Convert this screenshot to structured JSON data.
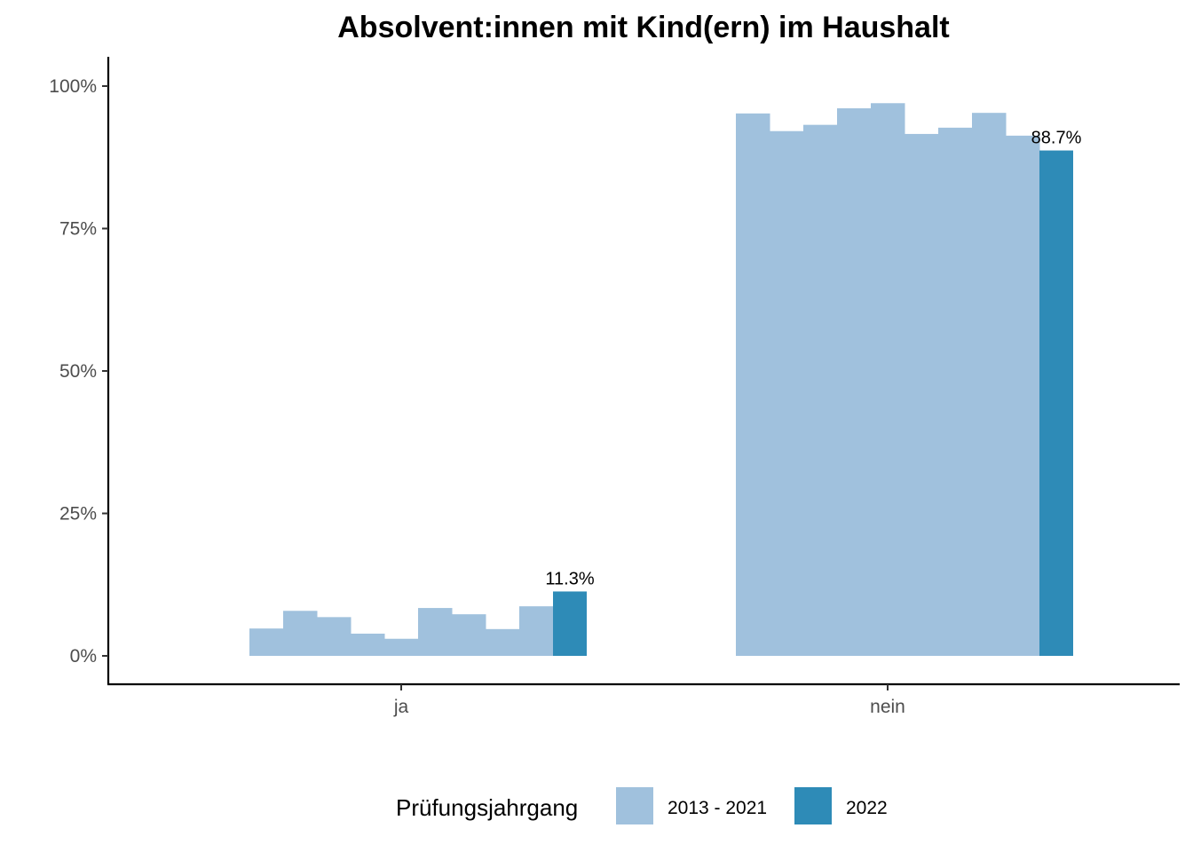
{
  "chart_data": {
    "type": "bar",
    "title": "Absolvent:innen mit Kind(ern) im Haushalt",
    "xlabel": "",
    "ylabel": "",
    "categories": [
      "ja",
      "nein"
    ],
    "ylim": [
      0,
      100
    ],
    "y_ticks": [
      {
        "value": 0,
        "label": "0%"
      },
      {
        "value": 25,
        "label": "25%"
      },
      {
        "value": 50,
        "label": "50%"
      },
      {
        "value": 75,
        "label": "75%"
      },
      {
        "value": 100,
        "label": "100%"
      }
    ],
    "grid": false,
    "legend": {
      "title": "Prüfungsjahrgang",
      "position": "bottom",
      "entries": [
        {
          "label": "2013 - 2021",
          "color": "#a0c1dd"
        },
        {
          "label": "2022",
          "color": "#2e8bb7"
        }
      ]
    },
    "history_series": {
      "group": "2013 - 2021",
      "color": "#a0c1dd",
      "values": {
        "ja": [
          4.8,
          7.9,
          6.8,
          3.9,
          3.0,
          8.4,
          7.3,
          4.7,
          8.7
        ],
        "nein": [
          95.2,
          92.1,
          93.2,
          96.1,
          97.0,
          91.6,
          92.7,
          95.3,
          91.3
        ]
      }
    },
    "highlight_series": {
      "group": "2022",
      "color": "#2e8bb7",
      "values": {
        "ja": 11.3,
        "nein": 88.7
      },
      "labels": {
        "ja": "11.3%",
        "nein": "88.7%"
      }
    }
  }
}
